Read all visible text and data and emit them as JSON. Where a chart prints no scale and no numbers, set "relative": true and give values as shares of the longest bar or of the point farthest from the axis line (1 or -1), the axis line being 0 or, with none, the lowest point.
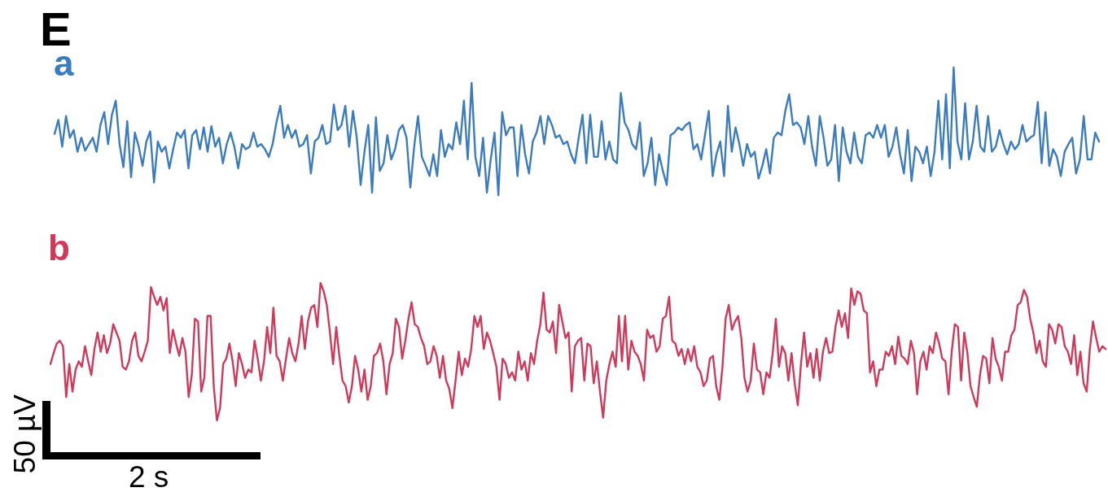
{
  "chart_data": [
    {
      "type": "line",
      "title": "E",
      "relative": true,
      "categories": [
        null,
        null,
        null,
        null,
        null,
        null,
        null,
        null,
        null,
        null,
        null,
        null,
        null,
        null,
        null,
        null,
        null,
        null,
        null,
        null,
        null,
        null,
        null,
        null,
        null,
        null,
        null,
        null,
        null,
        null,
        null,
        null,
        null,
        null,
        null,
        null,
        null,
        null,
        null,
        null,
        null,
        null,
        null,
        null,
        null,
        null,
        null,
        null,
        null,
        null,
        null,
        null,
        null,
        null,
        null,
        null,
        null,
        null,
        null,
        null,
        null,
        null,
        null,
        null,
        null,
        null,
        null,
        null,
        null,
        null,
        null,
        null,
        null,
        null,
        null,
        null,
        null,
        null,
        null,
        null,
        null,
        null,
        null,
        null,
        null,
        null,
        null,
        null,
        null,
        null,
        null,
        null,
        null,
        null,
        null,
        null,
        null,
        null,
        null,
        null,
        null,
        null,
        null,
        null,
        null,
        null,
        null,
        null,
        null,
        null,
        null,
        null,
        null,
        null,
        null,
        null,
        null,
        null,
        null,
        null,
        null,
        null,
        null,
        null,
        null,
        null,
        null,
        null,
        null,
        null,
        null,
        null,
        null,
        null,
        null,
        null,
        null,
        null,
        null,
        null,
        null,
        null,
        null,
        null,
        null,
        null,
        null,
        null,
        null,
        null,
        null,
        null,
        null,
        null,
        null,
        null,
        null,
        null,
        null,
        null,
        null,
        null,
        null,
        null,
        null,
        null,
        null,
        null,
        null,
        null,
        null,
        null,
        null,
        null,
        null,
        null,
        null,
        null,
        null,
        null,
        null,
        null,
        null,
        null,
        null,
        null,
        null,
        null,
        null,
        null,
        null,
        null,
        null,
        null,
        null,
        null,
        null,
        null,
        null,
        null,
        null,
        null,
        null,
        null,
        null,
        null,
        null,
        null,
        null,
        null,
        null,
        null,
        null,
        null,
        null,
        null,
        null,
        null,
        null,
        null,
        null,
        null,
        null,
        null,
        null,
        null,
        null,
        null,
        null,
        null,
        null,
        null,
        null,
        null,
        null,
        null,
        null,
        null,
        null,
        null,
        null,
        null,
        null,
        null,
        null,
        null,
        null,
        null,
        null,
        null,
        null,
        null,
        null,
        null,
        null,
        null,
        null,
        null,
        null,
        null,
        null,
        null,
        null,
        null,
        null,
        null,
        null,
        null,
        null,
        null,
        null,
        null,
        null,
        null
      ],
      "series": [
        {
          "name": "a",
          "color": "#3b7bbf",
          "values": [
            0.48,
            0.59,
            0.38,
            0.62,
            0.45,
            0.51,
            0.34,
            0.45,
            0.35,
            0.4,
            0.45,
            0.34,
            0.55,
            0.65,
            0.4,
            0.63,
            0.74,
            0.4,
            0.22,
            0.58,
            0.14,
            0.49,
            0.38,
            0.23,
            0.42,
            0.5,
            0.1,
            0.42,
            0.34,
            0.38,
            0.21,
            0.36,
            0.49,
            0.45,
            0.51,
            0.21,
            0.47,
            0.51,
            0.36,
            0.53,
            0.34,
            0.54,
            0.38,
            0.45,
            0.25,
            0.4,
            0.49,
            0.38,
            0.21,
            0.4,
            0.36,
            0.38,
            0.49,
            0.38,
            0.4,
            0.36,
            0.3,
            0.4,
            0.57,
            0.7,
            0.45,
            0.55,
            0.45,
            0.51,
            0.38,
            0.4,
            0.47,
            0.17,
            0.42,
            0.45,
            0.55,
            0.4,
            0.42,
            0.71,
            0.51,
            0.55,
            0.7,
            0.38,
            0.66,
            0.45,
            0.08,
            0.34,
            0.55,
            0.02,
            0.61,
            0.19,
            0.25,
            0.47,
            0.28,
            0.36,
            0.51,
            0.55,
            0.45,
            0.06,
            0.38,
            0.62,
            0.3,
            0.23,
            0.15,
            0.32,
            0.15,
            0.51,
            0.3,
            0.4,
            0.36,
            0.57,
            0.4,
            0.74,
            0.28,
            0.88,
            0.3,
            0.15,
            0.45,
            0.02,
            0.28,
            0.49,
            0,
            0.65,
            0.47,
            0.53,
            0.53,
            0.15,
            0.55,
            0.32,
            0.17,
            0.42,
            0.49,
            0.62,
            0.4,
            0.62,
            0.55,
            0.45,
            0.47,
            0.4,
            0.42,
            0.32,
            0.25,
            0.45,
            0.63,
            0.25,
            0.63,
            0.3,
            0.3,
            0.58,
            0.28,
            0.42,
            0.28,
            0.25,
            0.8,
            0.57,
            0.51,
            0.4,
            0.36,
            0.57,
            0.15,
            0.25,
            0.45,
            0.08,
            0.32,
            0.19,
            0.08,
            0.47,
            0.49,
            0.53,
            0.51,
            0.55,
            0.57,
            0.36,
            0.4,
            0.28,
            0.47,
            0.66,
            0.15,
            0.32,
            0.42,
            0.15,
            0.7,
            0.34,
            0.53,
            0.4,
            0.23,
            0.4,
            0.3,
            0.34,
            0.13,
            0.23,
            0.36,
            0.17,
            0.45,
            0.49,
            0.47,
            0.66,
            0.79,
            0.55,
            0.57,
            0.53,
            0.4,
            0.62,
            0.38,
            0.23,
            0.62,
            0.45,
            0.23,
            0.28,
            0.55,
            0.11,
            0.53,
            0.34,
            0.25,
            0.49,
            0.3,
            0.25,
            0.47,
            0.49,
            0.45,
            0.55,
            0.45,
            0.55,
            0.3,
            0.38,
            0.53,
            0.32,
            0.17,
            0.51,
            0.11,
            0.38,
            0.34,
            0.25,
            0.38,
            0.15,
            0.34,
            0.74,
            0.28,
            0.79,
            0.21,
            1,
            0.42,
            0.28,
            0.72,
            0.28,
            0.42,
            0.7,
            0.38,
            0.34,
            0.62,
            0.34,
            0.38,
            0.51,
            0.4,
            0.32,
            0.42,
            0.36,
            0.4,
            0.55,
            0.42,
            0.45,
            0.47,
            0.73,
            0.25,
            0.65,
            0.23,
            0.36,
            0.3,
            0.15,
            0.34,
            0.4,
            0.45,
            0.17,
            0.28,
            0.62,
            0.28,
            0.28,
            0.49,
            0.42
          ]
        }
      ]
    },
    {
      "type": "line",
      "relative": true,
      "categories": [
        null,
        null,
        null,
        null,
        null,
        null,
        null,
        null,
        null,
        null,
        null,
        null,
        null,
        null,
        null,
        null,
        null,
        null,
        null,
        null,
        null,
        null,
        null,
        null,
        null,
        null,
        null,
        null,
        null,
        null,
        null,
        null,
        null,
        null,
        null,
        null,
        null,
        null,
        null,
        null,
        null,
        null,
        null,
        null,
        null,
        null,
        null,
        null,
        null,
        null,
        null,
        null,
        null,
        null,
        null,
        null,
        null,
        null,
        null,
        null,
        null,
        null,
        null,
        null,
        null,
        null,
        null,
        null,
        null,
        null,
        null,
        null,
        null,
        null,
        null,
        null,
        null,
        null,
        null,
        null,
        null,
        null,
        null,
        null,
        null,
        null,
        null,
        null,
        null,
        null,
        null,
        null,
        null,
        null,
        null,
        null,
        null,
        null,
        null,
        null,
        null,
        null,
        null,
        null,
        null,
        null,
        null,
        null,
        null,
        null,
        null,
        null,
        null,
        null,
        null,
        null,
        null,
        null,
        null,
        null,
        null,
        null,
        null,
        null,
        null,
        null,
        null,
        null,
        null,
        null,
        null,
        null,
        null,
        null,
        null,
        null,
        null,
        null,
        null,
        null,
        null,
        null,
        null,
        null,
        null,
        null,
        null,
        null,
        null,
        null,
        null,
        null,
        null,
        null,
        null,
        null,
        null,
        null,
        null,
        null,
        null,
        null,
        null,
        null,
        null,
        null,
        null,
        null,
        null,
        null,
        null,
        null,
        null,
        null,
        null,
        null,
        null,
        null,
        null,
        null,
        null,
        null,
        null,
        null,
        null,
        null,
        null,
        null,
        null,
        null,
        null,
        null,
        null,
        null,
        null,
        null,
        null,
        null,
        null,
        null,
        null,
        null,
        null,
        null,
        null,
        null,
        null,
        null,
        null,
        null,
        null,
        null,
        null,
        null,
        null,
        null,
        null,
        null,
        null,
        null,
        null,
        null,
        null,
        null,
        null,
        null,
        null,
        null,
        null,
        null,
        null,
        null,
        null,
        null,
        null,
        null,
        null,
        null,
        null,
        null,
        null,
        null,
        null,
        null,
        null,
        null,
        null,
        null,
        null,
        null,
        null,
        null,
        null,
        null,
        null,
        null,
        null,
        null,
        null,
        null,
        null,
        null,
        null,
        null,
        null,
        null,
        null,
        null,
        null,
        null,
        null,
        null,
        null,
        null,
        null,
        null,
        null,
        null,
        null,
        null,
        null,
        null,
        null,
        null,
        null,
        null,
        null,
        null,
        null,
        null,
        null,
        null,
        null,
        null,
        null,
        null,
        null,
        null,
        null,
        null,
        null,
        null,
        null,
        null,
        null,
        null,
        null,
        null,
        null,
        null,
        null,
        null,
        null,
        null,
        null,
        null,
        null,
        null,
        null,
        null,
        null,
        null,
        null,
        null,
        null,
        null,
        null,
        null,
        null,
        null,
        null,
        null,
        null,
        null,
        null,
        null,
        null
      ],
      "series": [
        {
          "name": "b",
          "color": "#d1395a",
          "values": [
            0.41,
            0.49,
            0.56,
            0.58,
            0.54,
            0.17,
            0.41,
            0.21,
            0.37,
            0.43,
            0.39,
            0.54,
            0.43,
            0.33,
            0.52,
            0.64,
            0.5,
            0.62,
            0.49,
            0.56,
            0.7,
            0.64,
            0.58,
            0.39,
            0.37,
            0.43,
            0.58,
            0.64,
            0.47,
            0.43,
            0.5,
            0.58,
            0.97,
            0.9,
            0.84,
            0.9,
            0.8,
            0.89,
            0.49,
            0.66,
            0.56,
            0.47,
            0.6,
            0.5,
            0.17,
            0.33,
            0.74,
            0.72,
            0.21,
            0.31,
            0.76,
            0.76,
            0.25,
            0,
            0.09,
            0.41,
            0.45,
            0.56,
            0.43,
            0.25,
            0.49,
            0.41,
            0.31,
            0.37,
            0.35,
            0.58,
            0.45,
            0.29,
            0.43,
            0.68,
            0.49,
            0.82,
            0.47,
            0.43,
            0.29,
            0.45,
            0.6,
            0.49,
            0.43,
            0.56,
            0.76,
            0.52,
            0.72,
            0.82,
            0.84,
            0.68,
            1,
            0.94,
            0.84,
            0.64,
            0.41,
            0.68,
            0.47,
            0.29,
            0.25,
            0.13,
            0.25,
            0.47,
            0.37,
            0.21,
            0.37,
            0.15,
            0.25,
            0.47,
            0.49,
            0.56,
            0.43,
            0.19,
            0.41,
            0.49,
            0.74,
            0.68,
            0.45,
            0.58,
            0.74,
            0.86,
            0.7,
            0.68,
            0.6,
            0.54,
            0.41,
            0.43,
            0.54,
            0.47,
            0.31,
            0.47,
            0.29,
            0.23,
            0.09,
            0.29,
            0.5,
            0.33,
            0.45,
            0.39,
            0.52,
            0.76,
            0.68,
            0.76,
            0.52,
            0.64,
            0.58,
            0.49,
            0.39,
            0.15,
            0.45,
            0.41,
            0.31,
            0.35,
            0.29,
            0.5,
            0.37,
            0.43,
            0.29,
            0.49,
            0.41,
            0.58,
            0.7,
            0.93,
            0.66,
            0.64,
            0.72,
            0.49,
            0.84,
            0.72,
            0.6,
            0.64,
            0.21,
            0.54,
            0.58,
            0.6,
            0.29,
            0.56,
            0.54,
            0.27,
            0.43,
            0.21,
            0.02,
            0.29,
            0.41,
            0.5,
            0.39,
            0.76,
            0.43,
            0.76,
            0.37,
            0.58,
            0.5,
            0.47,
            0.41,
            0.29,
            0.66,
            0.6,
            0.62,
            0.5,
            0.54,
            0.74,
            0.76,
            0.9,
            0.58,
            0.56,
            0.47,
            0.52,
            0.41,
            0.52,
            0.43,
            0.54,
            0.39,
            0.35,
            0.25,
            0.29,
            0.45,
            0.47,
            0.25,
            0.15,
            0.39,
            0.74,
            0.84,
            0.66,
            0.72,
            0.76,
            0.6,
            0.31,
            0.21,
            0.29,
            0.56,
            0.37,
            0.35,
            0.19,
            0.35,
            0.31,
            0.49,
            0.74,
            0.39,
            0.54,
            0.49,
            0.29,
            0.49,
            0.27,
            0.11,
            0.41,
            0.64,
            0.39,
            0.49,
            0.31,
            0.52,
            0.29,
            0.5,
            0.6,
            0.49,
            0.5,
            0.68,
            0.8,
            0.68,
            0.78,
            0.6,
            0.96,
            0.84,
            0.94,
            0.92,
            0.8,
            0.78,
            0.35,
            0.43,
            0.25,
            0.37,
            0.37,
            0.5,
            0.47,
            0.54,
            0.41,
            0.61,
            0.47,
            0.45,
            0.41,
            0.58,
            0.49,
            0.19,
            0.43,
            0.5,
            0.37,
            0.54,
            0.49,
            0.64,
            0.56,
            0.45,
            0.43,
            0.19,
            0.5,
            0.7,
            0.68,
            0.29,
            0.64,
            0.49,
            0.25,
            0.17,
            0.1,
            0.33,
            0.47,
            0.45,
            0.27,
            0.6,
            0.45,
            0.39,
            0.29,
            0.5,
            0.5,
            0.62,
            0.66,
            0.84,
            0.86,
            0.95,
            0.9,
            0.74,
            0.64,
            0.49,
            0.58,
            0.43,
            0.39,
            0.7,
            0.66,
            0.56,
            0.7,
            0.68,
            0.54,
            0.5,
            0.41,
            0.62,
            0.33,
            0.5,
            0.27,
            0.21,
            0.52,
            0.72,
            0.6,
            0.5,
            0.54,
            0.52
          ]
        }
      ],
      "annotations": [
        "50 µV",
        "2 s"
      ]
    }
  ]
}
